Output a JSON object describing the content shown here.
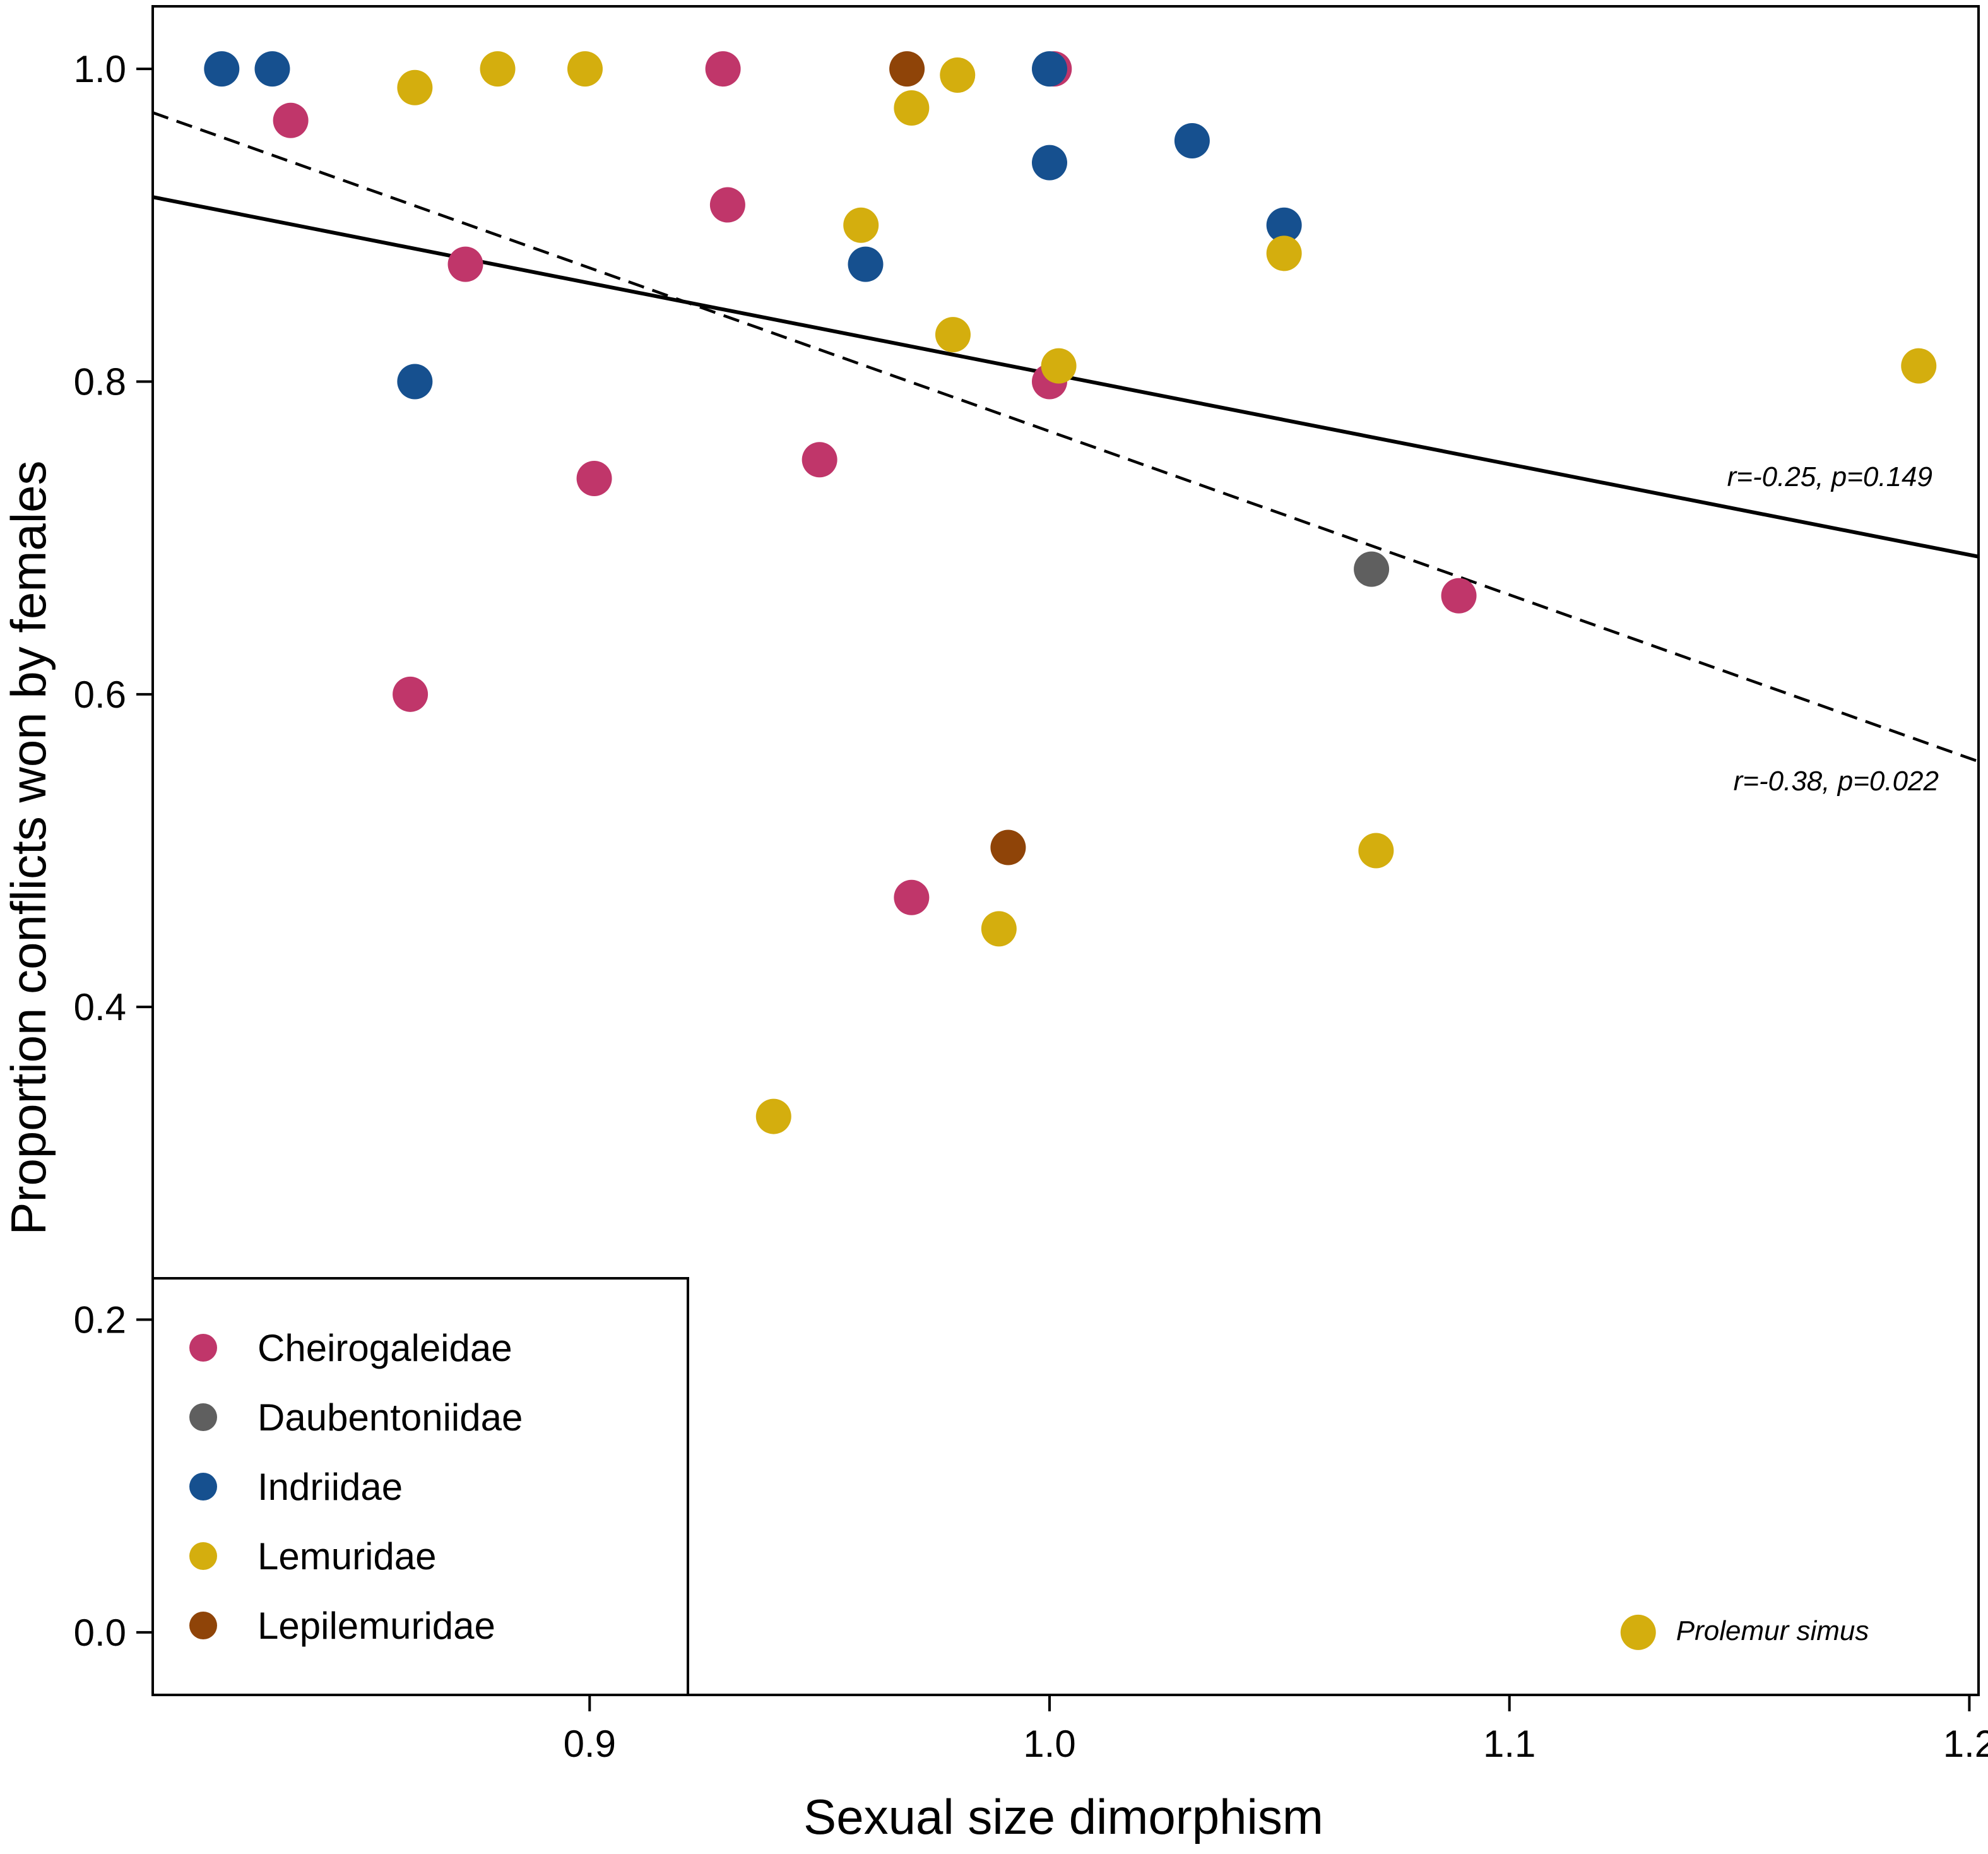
{
  "chart_data": {
    "type": "scatter",
    "title": "",
    "xlabel": "Sexual size dimorphism",
    "ylabel": "Proportion conflicts won by females",
    "xlim": [
      0.805,
      1.202
    ],
    "ylim": [
      -0.04,
      1.04
    ],
    "x_ticks": [
      0.9,
      1.0,
      1.1,
      1.2
    ],
    "x_tick_labels": [
      "0.9",
      "1.0",
      "1.1",
      "1.2"
    ],
    "y_ticks": [
      0.0,
      0.2,
      0.4,
      0.6,
      0.8,
      1.0
    ],
    "y_tick_labels": [
      "0.0",
      "0.2",
      "0.4",
      "0.6",
      "0.8",
      "1.0"
    ],
    "grid": false,
    "legend_position": "bottom-left",
    "series": [
      {
        "name": "Cheirogaleidae",
        "color": "#c0366a",
        "points": [
          {
            "x": 0.835,
            "y": 0.967
          },
          {
            "x": 0.929,
            "y": 1.0
          },
          {
            "x": 0.93,
            "y": 0.913
          },
          {
            "x": 0.873,
            "y": 0.875
          },
          {
            "x": 0.901,
            "y": 0.738
          },
          {
            "x": 0.95,
            "y": 0.75
          },
          {
            "x": 0.861,
            "y": 0.6
          },
          {
            "x": 1.001,
            "y": 1.0
          },
          {
            "x": 1.0,
            "y": 0.8
          },
          {
            "x": 1.089,
            "y": 0.663
          },
          {
            "x": 0.97,
            "y": 0.47
          }
        ]
      },
      {
        "name": "Daubentoniidae",
        "color": "#5f5f5f",
        "points": [
          {
            "x": 1.07,
            "y": 0.68
          }
        ]
      },
      {
        "name": "Indriidae",
        "color": "#16508f",
        "points": [
          {
            "x": 0.82,
            "y": 1.0
          },
          {
            "x": 0.831,
            "y": 1.0
          },
          {
            "x": 0.862,
            "y": 0.8
          },
          {
            "x": 0.96,
            "y": 0.875
          },
          {
            "x": 1.0,
            "y": 1.0
          },
          {
            "x": 1.0,
            "y": 0.94
          },
          {
            "x": 1.031,
            "y": 0.954
          },
          {
            "x": 1.051,
            "y": 0.9
          }
        ]
      },
      {
        "name": "Lemuridae",
        "color": "#d4ae0e",
        "points": [
          {
            "x": 0.862,
            "y": 0.988
          },
          {
            "x": 0.88,
            "y": 1.0
          },
          {
            "x": 0.899,
            "y": 1.0
          },
          {
            "x": 0.97,
            "y": 0.975
          },
          {
            "x": 0.98,
            "y": 0.996
          },
          {
            "x": 0.959,
            "y": 0.9
          },
          {
            "x": 0.979,
            "y": 0.83
          },
          {
            "x": 1.002,
            "y": 0.81
          },
          {
            "x": 1.051,
            "y": 0.882
          },
          {
            "x": 1.189,
            "y": 0.81
          },
          {
            "x": 1.071,
            "y": 0.5
          },
          {
            "x": 0.989,
            "y": 0.45
          },
          {
            "x": 0.94,
            "y": 0.33
          }
        ]
      },
      {
        "name": "Lepilemuridae",
        "color": "#8f4408",
        "points": [
          {
            "x": 0.969,
            "y": 1.0
          },
          {
            "x": 0.991,
            "y": 0.502
          }
        ]
      }
    ],
    "fit_lines": [
      {
        "style": "solid",
        "x": [
          0.805,
          1.202
        ],
        "y": [
          0.918,
          0.688
        ],
        "label": "r=-0.25, p=0.149"
      },
      {
        "style": "dashed",
        "x": [
          0.805,
          1.202
        ],
        "y": [
          0.972,
          0.557
        ],
        "label": "r=-0.38, p=0.022"
      }
    ],
    "special_point": {
      "label": "Prolemur simus",
      "x": 1.128,
      "y": 0.0,
      "color": "#d4ae0e"
    }
  }
}
